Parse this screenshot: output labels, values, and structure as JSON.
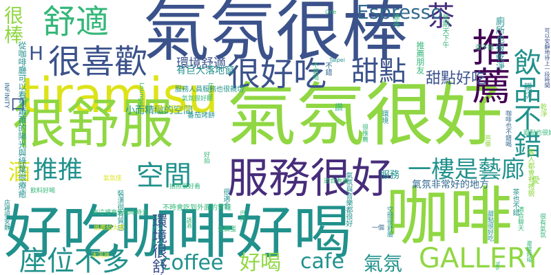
{
  "words": {
    "w01": "氣氛很棒",
    "w02": "氣氛很好",
    "w03": "tiramisu",
    "w04": "很舒服",
    "w05": "咖啡",
    "w06": "好吃咖啡好喝",
    "w07": "服務很好",
    "w08": "推薦",
    "w09": "舒適",
    "w10": "很喜歡",
    "w11": "很好吃",
    "w12": "甜點",
    "w13": "茶",
    "w14": "Espresso",
    "w15": "飲品不錯",
    "w16": "GALLERY",
    "w17": "座位不多",
    "w18": "空間",
    "w19": "推推",
    "w20": "一樓是藝廊",
    "w21": "coffee",
    "w22": "cafe",
    "w23": "好喝",
    "w24": "氣氛",
    "w25": "很棒",
    "w26": "酒",
    "w27": "甜點好吃",
    "w28": "環境舒適",
    "w29": "有巨大落地窗",
    "w30": "小而精緻的空間",
    "w31": "服務",
    "w32": "氣氛非常好的地方",
    "w33": "環境很舒適",
    "w34": "廁所也很乾淨",
    "w35": "口",
    "w36": "H",
    "w37": "從咖啡廳可以看到蕭蕭的陽光與綠葉很療癒",
    "w38": "星期天下午",
    "w39": "親切",
    "w40": "不錯",
    "w41": "乾淨",
    "w42": "Lounge",
    "w43": "best",
    "w44": "INFINITY",
    "w45": "One",
    "w46": "Taipei",
    "w47": "Yes",
    "w48": "環境",
    "w49": "漂亮",
    "w50": "巴克",
    "w51": "調酒",
    "w52": "客人都會有禮貌",
    "w53": "不錯喝",
    "w54": "茶也不錯",
    "w55": "芭樂",
    "w56": "推薦朋友",
    "w57": "氣氛與音樂都很好",
    "w58": "很適合",
    "w59": "番茄烤餅",
    "w60": "服務人員服務也很親切",
    "w61": "不時會吃到外面的青蛙",
    "w62": "金鑽蛋",
    "w63": "一個",
    "w64": "氣氛很好聽",
    "w65": "價位不算便宜",
    "w66": "咖啡也不錯喝",
    "w67": "適合聊天",
    "w68": "很推薦",
    "w69": "可以安靜地待上一段時間",
    "w70": "很有氣氛",
    "w71": "讚",
    "w72": "愛",
    "w73": "好拍",
    "w74": "還蠻好喝",
    "w75": "冰淇淋",
    "w76": "店裡很安靜",
    "w77": "裝潢很有質感",
    "w78": "拍照很好看",
    "w79": "來這裡享受咖啡時光",
    "w80": "推薦給大家",
    "w81": "適合看書",
    "w82": "甜點很好吃",
    "w83": "飲料好喝",
    "w84": "氣氛佳",
    "w85": "甜點也很好吃",
    "w86": "空間很舒服",
    "w87": "還不錯"
  }
}
